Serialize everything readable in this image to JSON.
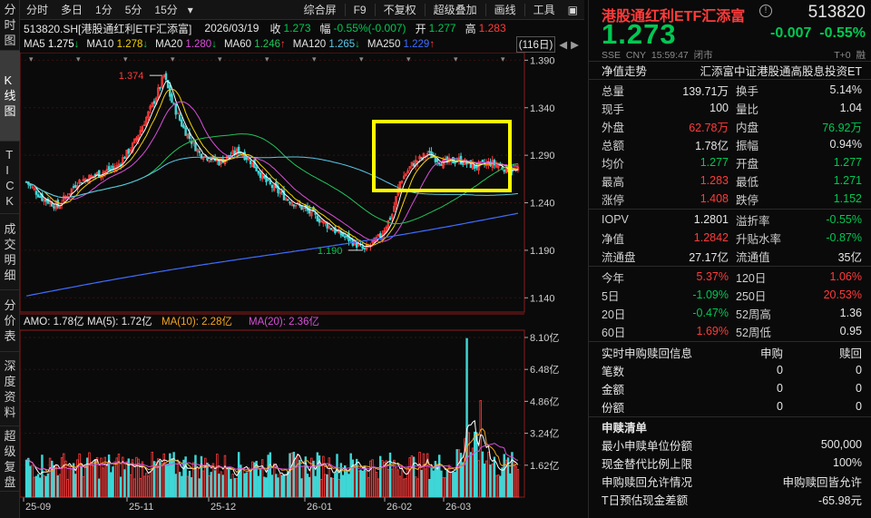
{
  "sidebar": {
    "tabs": [
      {
        "label": "分时图",
        "active": false
      },
      {
        "label": "K线图",
        "active": true
      },
      {
        "label": "TICK",
        "active": false
      },
      {
        "label": "成交明细",
        "active": false
      },
      {
        "label": "分价表",
        "active": false
      },
      {
        "label": "深度资料",
        "active": false
      },
      {
        "label": "超级复盘",
        "active": false
      }
    ]
  },
  "toolbar": {
    "left": [
      "分时",
      "多日",
      "1分",
      "5分",
      "15分"
    ],
    "right": [
      "综合屏",
      "F9",
      "不复权",
      "超级叠加",
      "画线",
      "工具"
    ]
  },
  "info": {
    "title": "513820.SH[港股通红利ETF汇添富]",
    "date": "2026/03/19",
    "close_label": "收",
    "close": "1.273",
    "amp_label": "幅",
    "amp": "-0.55%(-0.007)",
    "open_label": "开",
    "open": "1.277",
    "high_label": "高",
    "high": "1.283"
  },
  "ma": [
    {
      "name": "MA5",
      "value": "1.275",
      "arrow": "↓",
      "color": "#ffffff"
    },
    {
      "name": "MA10",
      "value": "1.278",
      "arrow": "↓",
      "color": "#f5d300"
    },
    {
      "name": "MA20",
      "value": "1.280",
      "arrow": "↓",
      "color": "#d94fd9"
    },
    {
      "name": "MA60",
      "value": "1.246",
      "arrow": "↑",
      "color": "#22c35b"
    },
    {
      "name": "MA120",
      "value": "1.265",
      "arrow": "↓",
      "color": "#5bc8e8"
    },
    {
      "name": "MA250",
      "value": "1.229",
      "arrow": "↑",
      "color": "#3f6dff"
    }
  ],
  "ma_counter": "(116日)",
  "vol_legend": {
    "amo_label": "AMO:",
    "amo": "1.78亿",
    "ma5_label": "MA(5):",
    "ma5": "1.72亿",
    "ma10_label": "MA(10):",
    "ma10": "2.28亿",
    "ma20_label": "MA(20):",
    "ma20": "2.36亿"
  },
  "price_axis": [
    "1.390",
    "1.340",
    "1.290",
    "1.240",
    "1.190",
    "1.140"
  ],
  "vol_axis": [
    "8.10亿",
    "6.48亿",
    "4.86亿",
    "3.24亿",
    "1.62亿"
  ],
  "x_axis": [
    "25-09",
    "25-11",
    "25-12",
    "26-01",
    "26-02",
    "26-03"
  ],
  "annotations": {
    "high": "1.374",
    "low": "1.190"
  },
  "colors": {
    "up": "#ff3b3b",
    "down": "#00c853",
    "highlight": "#ffff00"
  },
  "chart_data": {
    "type": "candlestick",
    "ylim": [
      1.125,
      1.398
    ],
    "vol_ylim": [
      0,
      8.1
    ],
    "vol_unit": "亿",
    "candles_note": "approximate daily OHLC series"
  },
  "right_panel": {
    "name": "港股通红利ETF汇添富",
    "code": "513820",
    "price": "1.273",
    "change": "-0.007",
    "change_pct": "-0.55%",
    "meta": [
      "SSE",
      "CNY",
      "15:59:47",
      "闭市"
    ],
    "meta_right": [
      "T+0",
      "融"
    ],
    "nav_title": "净值走势",
    "nav_desc": "汇添富中证港股通高股息投资ET",
    "stats1": [
      {
        "l1": "总量",
        "v1": "139.71万",
        "c1": "wh",
        "l2": "换手",
        "v2": "5.14%",
        "c2": "wh"
      },
      {
        "l1": "现手",
        "v1": "100",
        "c1": "wh",
        "l2": "量比",
        "v2": "1.04",
        "c2": "wh"
      },
      {
        "l1": "外盘",
        "v1": "62.78万",
        "c1": "up",
        "l2": "内盘",
        "v2": "76.92万",
        "c2": "dn"
      },
      {
        "l1": "总额",
        "v1": "1.78亿",
        "c1": "wh",
        "l2": "振幅",
        "v2": "0.94%",
        "c2": "wh"
      },
      {
        "l1": "均价",
        "v1": "1.277",
        "c1": "dn",
        "l2": "开盘",
        "v2": "1.277",
        "c2": "dn"
      },
      {
        "l1": "最高",
        "v1": "1.283",
        "c1": "up",
        "l2": "最低",
        "v2": "1.271",
        "c2": "dn"
      },
      {
        "l1": "涨停",
        "v1": "1.408",
        "c1": "up",
        "l2": "跌停",
        "v2": "1.152",
        "c2": "dn"
      }
    ],
    "stats2": [
      {
        "l1": "IOPV",
        "v1": "1.2801",
        "c1": "wh",
        "l2": "溢折率",
        "v2": "-0.55%",
        "c2": "dn"
      },
      {
        "l1": "净值",
        "v1": "1.2842",
        "c1": "up",
        "l2": "升贴水率",
        "v2": "-0.87%",
        "c2": "dn"
      },
      {
        "l1": "流通盘",
        "v1": "27.17亿",
        "c1": "wh",
        "l2": "流通值",
        "v2": "35亿",
        "c2": "wh"
      }
    ],
    "stats3": [
      {
        "l1": "今年",
        "v1": "5.37%",
        "c1": "up",
        "l2": "120日",
        "v2": "1.06%",
        "c2": "up"
      },
      {
        "l1": "5日",
        "v1": "-1.09%",
        "c1": "dn",
        "l2": "250日",
        "v2": "20.53%",
        "c2": "up"
      },
      {
        "l1": "20日",
        "v1": "-0.47%",
        "c1": "dn",
        "l2": "52周高",
        "v2": "1.36",
        "c2": "wh"
      },
      {
        "l1": "60日",
        "v1": "1.69%",
        "c1": "up",
        "l2": "52周低",
        "v2": "0.95",
        "c2": "wh"
      }
    ],
    "realtime": {
      "title": "实时申购赎回信息",
      "col1": "申购",
      "col2": "赎回",
      "rows": [
        {
          "label": "笔数",
          "a": "0",
          "b": "0"
        },
        {
          "label": "金额",
          "a": "0",
          "b": "0"
        },
        {
          "label": "份额",
          "a": "0",
          "b": "0"
        }
      ]
    },
    "list": {
      "title": "申赎清单",
      "rows": [
        {
          "label": "最小申赎单位份额",
          "value": "500,000"
        },
        {
          "label": "现金替代比例上限",
          "value": "100%"
        },
        {
          "label": "申购赎回允许情况",
          "value": "申购赎回皆允许"
        },
        {
          "label": "T日预估现金差额",
          "value": "-65.98元"
        }
      ]
    }
  }
}
